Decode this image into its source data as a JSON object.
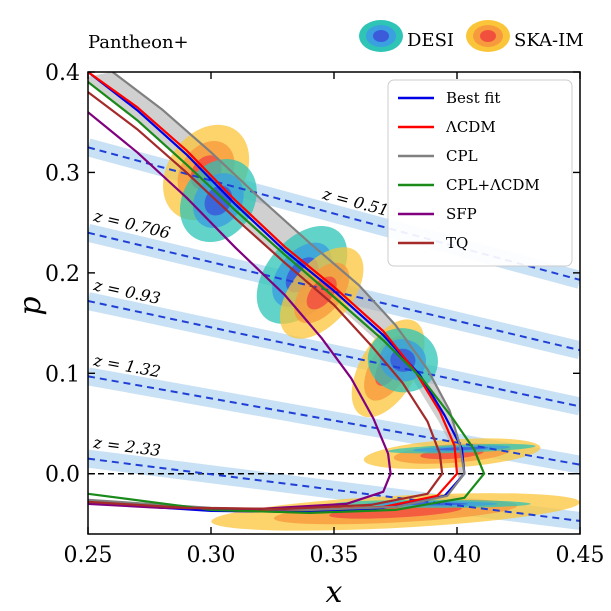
{
  "dataset_label": "Pantheon+",
  "top_legend": [
    {
      "label": "DESI",
      "colors": [
        "#2ec4b6",
        "#3aa0e0",
        "#3b5bdb"
      ]
    },
    {
      "label": "SKA-IM",
      "colors": [
        "#fbc53a",
        "#f79a3e",
        "#f2503f"
      ]
    }
  ],
  "chart_data": {
    "type": "line",
    "title": "",
    "xlabel": "x",
    "ylabel": "p",
    "xlim": [
      0.25,
      0.45
    ],
    "ylim": [
      -0.06,
      0.4
    ],
    "xticks": [
      "0.25",
      "0.30",
      "0.35",
      "0.40",
      "0.45"
    ],
    "yticks": [
      "0.0",
      "0.1",
      "0.2",
      "0.3",
      "0.4"
    ],
    "xtick_values": [
      0.25,
      0.3,
      0.35,
      0.4,
      0.45
    ],
    "ytick_values": [
      0.0,
      0.1,
      0.2,
      0.3,
      0.4
    ],
    "zero_line": 0.0,
    "legend_position": "top-right",
    "series": [
      {
        "name": "Best fit",
        "color": "#0000e6",
        "points": [
          [
            0.25,
            0.4
          ],
          [
            0.27,
            0.362
          ],
          [
            0.29,
            0.318
          ],
          [
            0.31,
            0.268
          ],
          [
            0.33,
            0.222
          ],
          [
            0.35,
            0.182
          ],
          [
            0.37,
            0.138
          ],
          [
            0.385,
            0.098
          ],
          [
            0.395,
            0.058
          ],
          [
            0.402,
            0.025
          ],
          [
            0.403,
            0.0
          ],
          [
            0.395,
            -0.022
          ],
          [
            0.37,
            -0.034
          ],
          [
            0.34,
            -0.038
          ],
          [
            0.3,
            -0.037
          ],
          [
            0.25,
            -0.029
          ]
        ]
      },
      {
        "name": "ΛCDM",
        "color": "#ff0000",
        "points": [
          [
            0.25,
            0.4
          ],
          [
            0.27,
            0.365
          ],
          [
            0.29,
            0.322
          ],
          [
            0.31,
            0.272
          ],
          [
            0.33,
            0.226
          ],
          [
            0.35,
            0.186
          ],
          [
            0.37,
            0.142
          ],
          [
            0.383,
            0.102
          ],
          [
            0.393,
            0.062
          ],
          [
            0.399,
            0.028
          ],
          [
            0.4,
            0.0
          ],
          [
            0.392,
            -0.022
          ],
          [
            0.37,
            -0.033
          ],
          [
            0.34,
            -0.036
          ],
          [
            0.3,
            -0.035
          ],
          [
            0.25,
            -0.027
          ]
        ]
      },
      {
        "name": "CPL",
        "color": "#808080",
        "points": [
          [
            0.26,
            0.4
          ],
          [
            0.28,
            0.363
          ],
          [
            0.3,
            0.32
          ],
          [
            0.32,
            0.274
          ],
          [
            0.34,
            0.23
          ],
          [
            0.36,
            0.188
          ],
          [
            0.375,
            0.148
          ],
          [
            0.388,
            0.104
          ],
          [
            0.397,
            0.063
          ],
          [
            0.401,
            0.03
          ],
          [
            0.403,
            0.0
          ],
          [
            0.396,
            -0.022
          ],
          [
            0.375,
            -0.033
          ],
          [
            0.34,
            -0.036
          ],
          [
            0.3,
            -0.034
          ],
          [
            0.25,
            -0.026
          ]
        ]
      },
      {
        "name": "CPL+ΛCDM",
        "color": "#1a8a1a",
        "points": [
          [
            0.25,
            0.39
          ],
          [
            0.27,
            0.352
          ],
          [
            0.29,
            0.308
          ],
          [
            0.31,
            0.262
          ],
          [
            0.33,
            0.218
          ],
          [
            0.35,
            0.176
          ],
          [
            0.37,
            0.133
          ],
          [
            0.386,
            0.094
          ],
          [
            0.398,
            0.056
          ],
          [
            0.407,
            0.024
          ],
          [
            0.411,
            0.0
          ],
          [
            0.403,
            -0.024
          ],
          [
            0.375,
            -0.036
          ],
          [
            0.34,
            -0.039
          ],
          [
            0.3,
            -0.036
          ],
          [
            0.25,
            -0.02
          ]
        ]
      },
      {
        "name": "SFP",
        "color": "#800080",
        "points": [
          [
            0.25,
            0.36
          ],
          [
            0.27,
            0.32
          ],
          [
            0.29,
            0.275
          ],
          [
            0.31,
            0.225
          ],
          [
            0.33,
            0.178
          ],
          [
            0.345,
            0.135
          ],
          [
            0.357,
            0.095
          ],
          [
            0.366,
            0.055
          ],
          [
            0.372,
            0.02
          ],
          [
            0.373,
            0.0
          ],
          [
            0.37,
            -0.018
          ],
          [
            0.355,
            -0.03
          ],
          [
            0.32,
            -0.035
          ],
          [
            0.28,
            -0.034
          ],
          [
            0.25,
            -0.03
          ]
        ]
      },
      {
        "name": "TQ",
        "color": "#a52a2a",
        "points": [
          [
            0.25,
            0.38
          ],
          [
            0.27,
            0.343
          ],
          [
            0.29,
            0.3
          ],
          [
            0.31,
            0.254
          ],
          [
            0.33,
            0.21
          ],
          [
            0.35,
            0.168
          ],
          [
            0.365,
            0.128
          ],
          [
            0.378,
            0.09
          ],
          [
            0.388,
            0.052
          ],
          [
            0.393,
            0.02
          ],
          [
            0.394,
            0.0
          ],
          [
            0.388,
            -0.02
          ],
          [
            0.365,
            -0.031
          ],
          [
            0.33,
            -0.035
          ],
          [
            0.29,
            -0.034
          ],
          [
            0.25,
            -0.028
          ]
        ]
      }
    ],
    "redshift_lines": [
      {
        "label": "z = 0.51",
        "x0": 0.25,
        "p0": 0.325,
        "x1": 0.45,
        "p1": 0.193,
        "label_x": 0.345,
        "label_p": 0.26
      },
      {
        "label": "z = 0.706",
        "x0": 0.25,
        "p0": 0.24,
        "x1": 0.45,
        "p1": 0.123,
        "label_x": 0.252,
        "label_p": 0.238
      },
      {
        "label": "z = 0.93",
        "x0": 0.25,
        "p0": 0.172,
        "x1": 0.45,
        "p1": 0.067,
        "label_x": 0.252,
        "label_p": 0.169
      },
      {
        "label": "z = 1.32",
        "x0": 0.25,
        "p0": 0.097,
        "x1": 0.45,
        "p1": 0.009,
        "label_x": 0.252,
        "label_p": 0.094
      },
      {
        "label": "z = 2.33",
        "x0": 0.25,
        "p0": 0.015,
        "x1": 0.45,
        "p1": -0.047,
        "label_x": 0.252,
        "label_p": 0.012
      }
    ],
    "ellipses": [
      {
        "survey": "SKA-IM",
        "cx": 0.298,
        "cy": 0.3,
        "rx": 0.021,
        "ry": 0.038,
        "angle": -55
      },
      {
        "survey": "DESI",
        "cx": 0.303,
        "cy": 0.272,
        "rx": 0.018,
        "ry": 0.035,
        "angle": -55
      },
      {
        "survey": "DESI",
        "cx": 0.337,
        "cy": 0.198,
        "rx": 0.023,
        "ry": 0.035,
        "angle": -50
      },
      {
        "survey": "SKA-IM",
        "cx": 0.345,
        "cy": 0.18,
        "rx": 0.022,
        "ry": 0.03,
        "angle": -50
      },
      {
        "survey": "SKA-IM",
        "cx": 0.372,
        "cy": 0.105,
        "rx": 0.022,
        "ry": 0.028,
        "angle": -60
      },
      {
        "survey": "DESI",
        "cx": 0.378,
        "cy": 0.113,
        "rx": 0.013,
        "ry": 0.035,
        "angle": -80
      },
      {
        "survey": "SKA-IM",
        "cx": 0.398,
        "cy": 0.02,
        "rx": 0.036,
        "ry": 0.014,
        "angle": -4
      },
      {
        "survey": "DESI",
        "cx": 0.402,
        "cy": 0.025,
        "rx": 0.03,
        "ry": 0.004,
        "angle": -2
      },
      {
        "survey": "SKA-IM",
        "cx": 0.375,
        "cy": -0.038,
        "rx": 0.075,
        "ry": 0.016,
        "angle": -3
      },
      {
        "survey": "DESI",
        "cx": 0.39,
        "cy": -0.03,
        "rx": 0.04,
        "ry": 0.004,
        "angle": 0
      }
    ],
    "gray_band_label": "CPL"
  }
}
